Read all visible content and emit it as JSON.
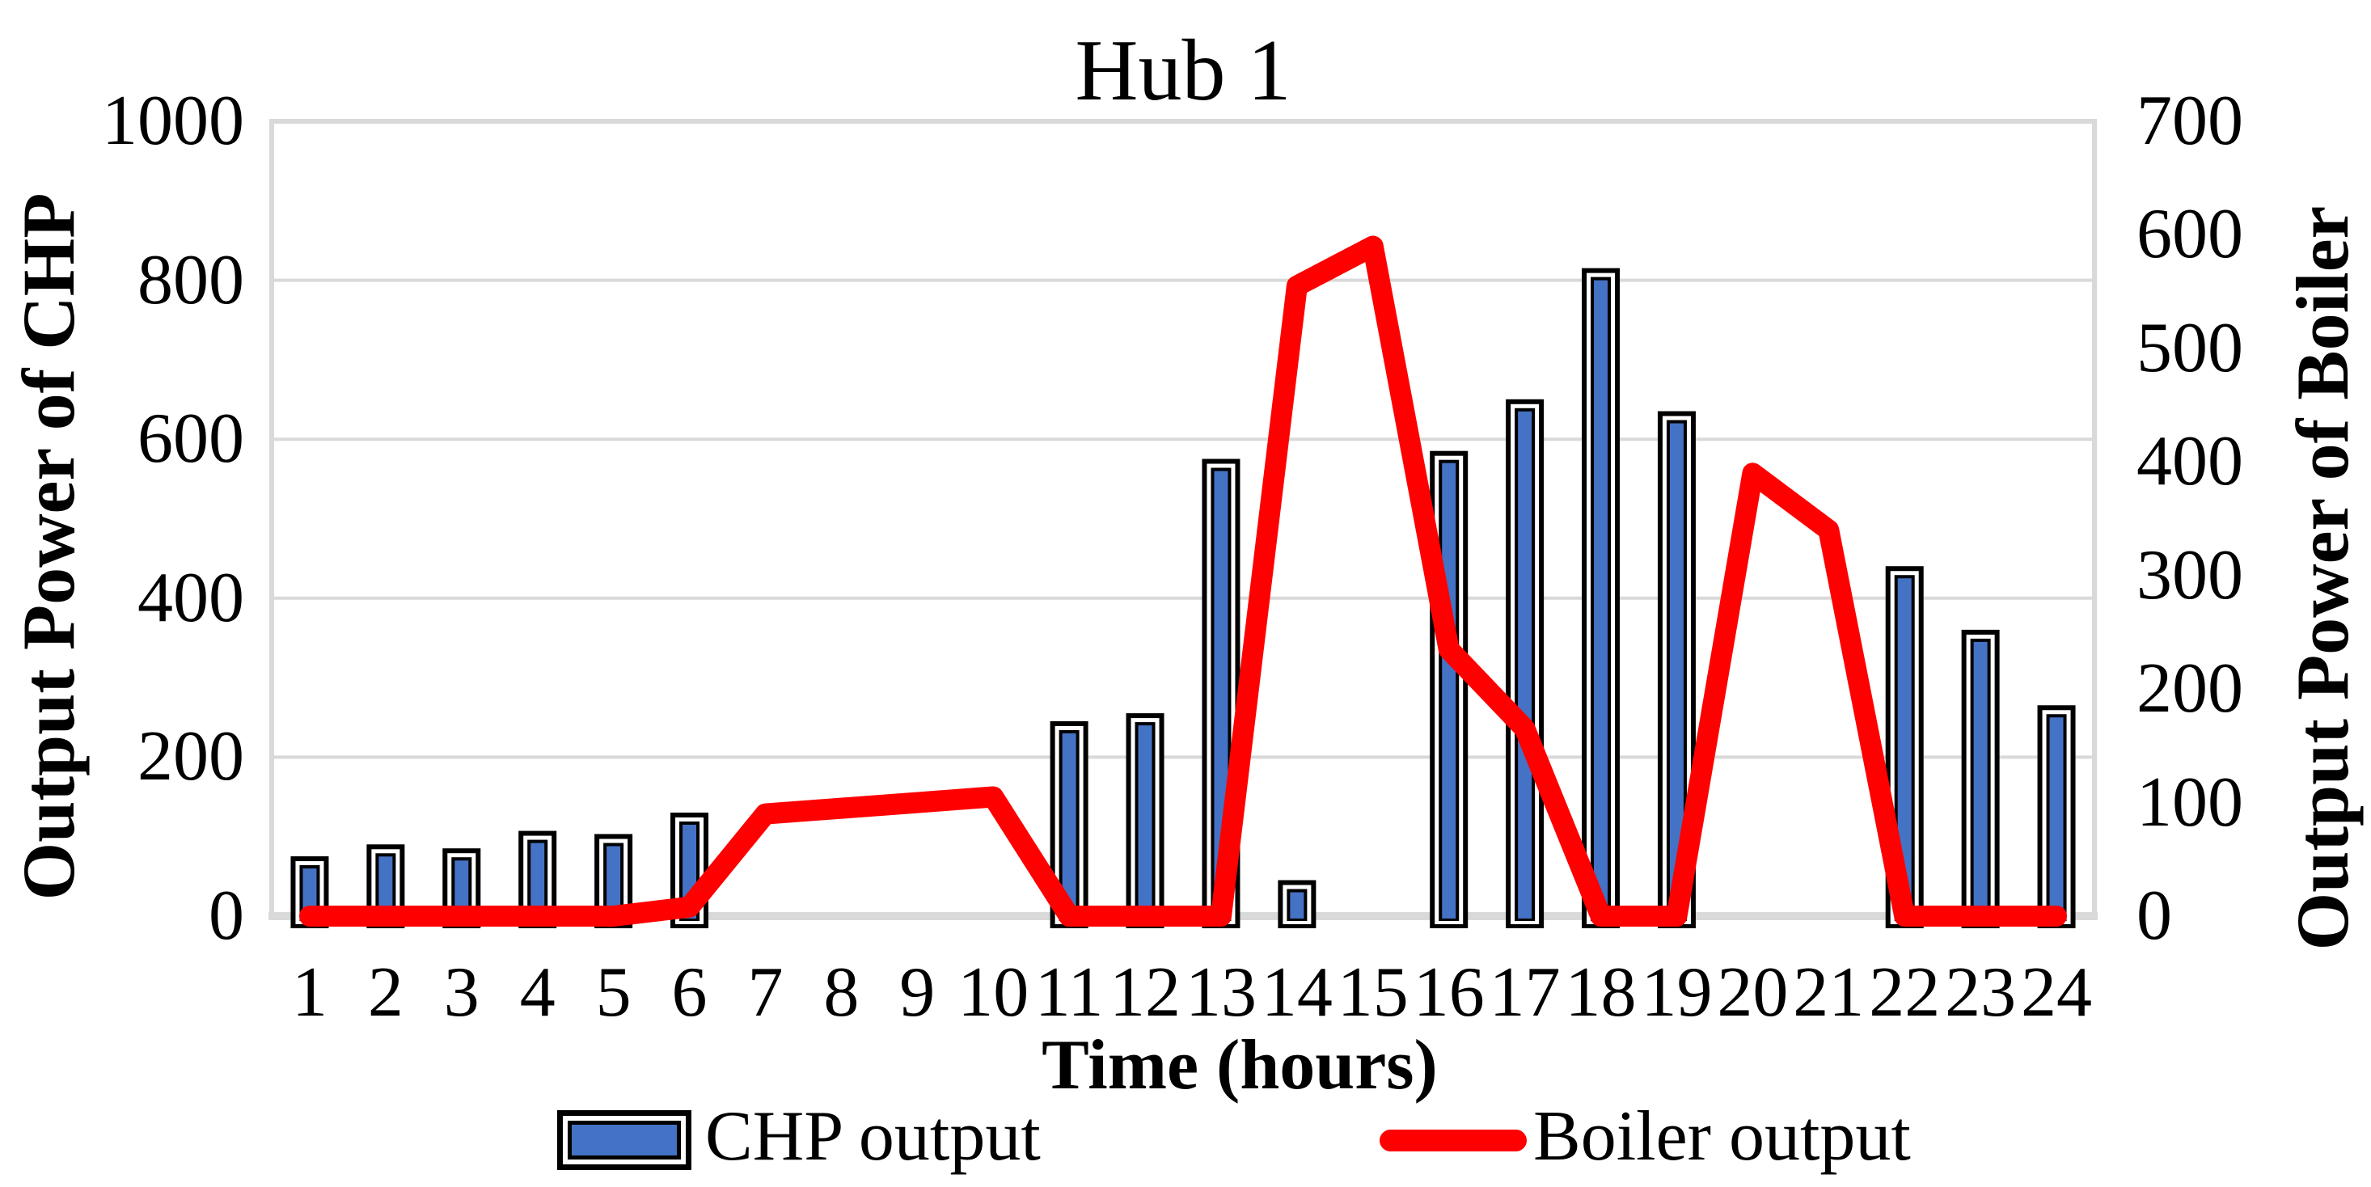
{
  "chart_data": {
    "type": "combo",
    "title": "Hub 1",
    "x_title": "Time (hours)",
    "y_left_title": "Output Power of CHP",
    "y_right_title": "Output Power of Boiler",
    "categories": [
      1,
      2,
      3,
      4,
      5,
      6,
      7,
      8,
      9,
      10,
      11,
      12,
      13,
      14,
      15,
      16,
      17,
      18,
      19,
      20,
      21,
      22,
      23,
      24
    ],
    "series": [
      {
        "name": "CHP output",
        "type": "bar",
        "axis": "left",
        "color": "#4472C4",
        "values": [
          60,
          75,
          70,
          92,
          88,
          115,
          0,
          0,
          0,
          0,
          230,
          240,
          560,
          30,
          0,
          570,
          635,
          800,
          620,
          0,
          0,
          425,
          345,
          250
        ]
      },
      {
        "name": "Boiler output",
        "type": "line",
        "axis": "right",
        "color": "#FF0000",
        "values": [
          0,
          0,
          0,
          0,
          0,
          8,
          90,
          95,
          100,
          105,
          0,
          0,
          0,
          555,
          590,
          235,
          165,
          0,
          0,
          390,
          340,
          0,
          0,
          0
        ]
      }
    ],
    "axes": {
      "left": {
        "min": 0,
        "max": 1000,
        "ticks": [
          0,
          200,
          400,
          600,
          800,
          1000
        ]
      },
      "right": {
        "min": 0,
        "max": 700,
        "ticks": [
          0,
          100,
          200,
          300,
          400,
          500,
          600,
          700
        ]
      },
      "grid": {
        "horizontal": true,
        "color": "#D9D9D9"
      }
    },
    "legend": {
      "position": "bottom",
      "entries": [
        {
          "label": "CHP output",
          "swatch": "bar-blue"
        },
        {
          "label": "Boiler output",
          "swatch": "line-red"
        }
      ]
    },
    "colors": {
      "bar_fill": "#4472C4",
      "bar_outline": "#000000",
      "line": "#FF0000",
      "gridline": "#D9D9D9",
      "text": "#000000",
      "background": "#FFFFFF"
    }
  }
}
